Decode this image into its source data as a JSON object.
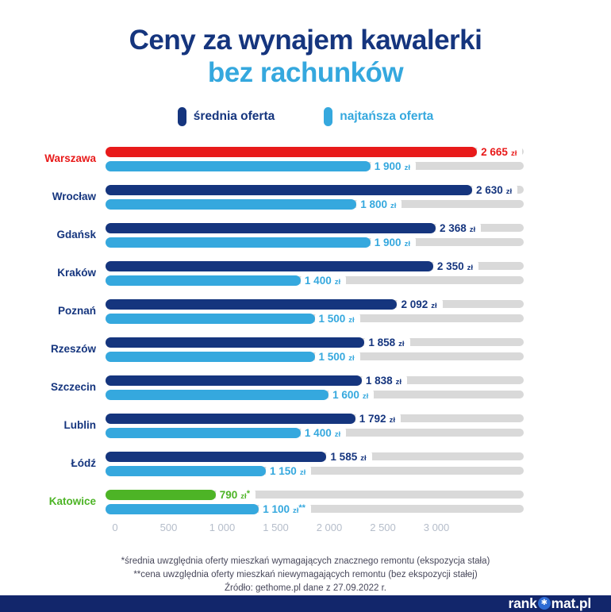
{
  "page": {
    "title_line1": "Ceny za wynajem kawalerki",
    "title_line2": "bez rachunków"
  },
  "colors": {
    "navy": "#15357e",
    "light_blue": "#35a8de",
    "red": "#e81a1a",
    "green": "#4db426",
    "track_gray": "#d9d9d9",
    "axis_text": "#b5bdca",
    "footer_bar": "#12266b"
  },
  "legend": [
    {
      "label": "średnia oferta",
      "color": "#15357e"
    },
    {
      "label": "najtańsza oferta",
      "color": "#35a8de"
    }
  ],
  "chart_data": {
    "type": "bar",
    "orientation": "horizontal",
    "title": "Ceny za wynajem kawalerki bez rachunków",
    "xlim": [
      0,
      3000
    ],
    "x_tick_values": [
      0,
      500,
      1000,
      1500,
      2000,
      2500,
      3000
    ],
    "x_ticks": [
      "0",
      "500",
      "1 000",
      "1 500",
      "2 000",
      "2 500",
      "3 000"
    ],
    "unit": "zł",
    "grid": false,
    "legend_position": "top",
    "categories": [
      "Warszawa",
      "Wrocław",
      "Gdańsk",
      "Kraków",
      "Poznań",
      "Rzeszów",
      "Szczecin",
      "Lublin",
      "Łódź",
      "Katowice"
    ],
    "series": [
      {
        "name": "średnia oferta",
        "values": [
          2665,
          2630,
          2368,
          2350,
          2092,
          1858,
          1838,
          1792,
          1585,
          790
        ]
      },
      {
        "name": "najtańsza oferta",
        "values": [
          1900,
          1800,
          1900,
          1400,
          1500,
          1500,
          1600,
          1400,
          1150,
          1100
        ]
      }
    ],
    "rows": [
      {
        "city": "Warszawa",
        "city_color": "#e81a1a",
        "avg": 2665,
        "avg_label": "2 665",
        "avg_color": "#e81a1a",
        "avg_suffix": "",
        "min": 1900,
        "min_label": "1 900",
        "min_color": "#35a8de",
        "min_suffix": ""
      },
      {
        "city": "Wrocław",
        "city_color": "#15357e",
        "avg": 2630,
        "avg_label": "2 630",
        "avg_color": "#15357e",
        "avg_suffix": "",
        "min": 1800,
        "min_label": "1 800",
        "min_color": "#35a8de",
        "min_suffix": ""
      },
      {
        "city": "Gdańsk",
        "city_color": "#15357e",
        "avg": 2368,
        "avg_label": "2 368",
        "avg_color": "#15357e",
        "avg_suffix": "",
        "min": 1900,
        "min_label": "1 900",
        "min_color": "#35a8de",
        "min_suffix": ""
      },
      {
        "city": "Kraków",
        "city_color": "#15357e",
        "avg": 2350,
        "avg_label": "2 350",
        "avg_color": "#15357e",
        "avg_suffix": "",
        "min": 1400,
        "min_label": "1 400",
        "min_color": "#35a8de",
        "min_suffix": ""
      },
      {
        "city": "Poznań",
        "city_color": "#15357e",
        "avg": 2092,
        "avg_label": "2 092",
        "avg_color": "#15357e",
        "avg_suffix": "",
        "min": 1500,
        "min_label": "1 500",
        "min_color": "#35a8de",
        "min_suffix": ""
      },
      {
        "city": "Rzeszów",
        "city_color": "#15357e",
        "avg": 1858,
        "avg_label": "1 858",
        "avg_color": "#15357e",
        "avg_suffix": "",
        "min": 1500,
        "min_label": "1 500",
        "min_color": "#35a8de",
        "min_suffix": ""
      },
      {
        "city": "Szczecin",
        "city_color": "#15357e",
        "avg": 1838,
        "avg_label": "1 838",
        "avg_color": "#15357e",
        "avg_suffix": "",
        "min": 1600,
        "min_label": "1 600",
        "min_color": "#35a8de",
        "min_suffix": ""
      },
      {
        "city": "Lublin",
        "city_color": "#15357e",
        "avg": 1792,
        "avg_label": "1 792",
        "avg_color": "#15357e",
        "avg_suffix": "",
        "min": 1400,
        "min_label": "1 400",
        "min_color": "#35a8de",
        "min_suffix": ""
      },
      {
        "city": "Łódź",
        "city_color": "#15357e",
        "avg": 1585,
        "avg_label": "1 585",
        "avg_color": "#15357e",
        "avg_suffix": "",
        "min": 1150,
        "min_label": "1 150",
        "min_color": "#35a8de",
        "min_suffix": ""
      },
      {
        "city": "Katowice",
        "city_color": "#4db426",
        "avg": 790,
        "avg_label": "790",
        "avg_color": "#4db426",
        "avg_suffix": "*",
        "min": 1100,
        "min_label": "1 100",
        "min_color": "#35a8de",
        "min_suffix": "**"
      }
    ]
  },
  "footnotes": [
    "*średnia uwzględnia oferty mieszkań wymagających znacznego remontu (ekspozycja stała)",
    "**cena uwzględnia oferty mieszkań niewymagających remontu (bez ekspozycji stałej)",
    "Źródło: gethome.pl dane z 27.09.2022 r."
  ],
  "footer": {
    "logo_prefix": "rank",
    "logo_badge_icon": "star-asterisk",
    "logo_suffix": "mat.pl"
  }
}
